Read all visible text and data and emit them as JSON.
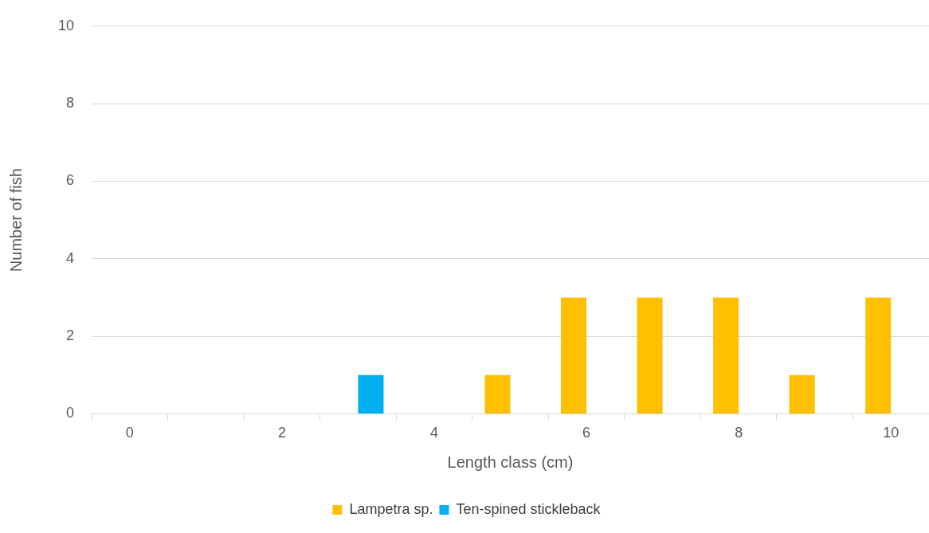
{
  "chart_data": {
    "type": "bar",
    "xlabel": "Length class (cm)",
    "ylabel": "Number of fish",
    "categories": [
      "0",
      null,
      "2",
      null,
      "4",
      null,
      "6",
      null,
      "8",
      null,
      "10"
    ],
    "series": [
      {
        "name": "Lampetra sp.",
        "color": "#ffc000",
        "values": [
          0,
          0,
          0,
          0,
          0,
          1,
          3,
          3,
          3,
          1,
          3
        ]
      },
      {
        "name": "Ten-spined stickleback",
        "color": "#00b0f0",
        "values": [
          0,
          0,
          0,
          1,
          0,
          0,
          0,
          0,
          0,
          0,
          0
        ]
      }
    ],
    "ylim": [
      0,
      10
    ],
    "yticks": [
      0,
      2,
      4,
      6,
      8,
      10
    ],
    "grid": "y",
    "legend": "bottom"
  }
}
